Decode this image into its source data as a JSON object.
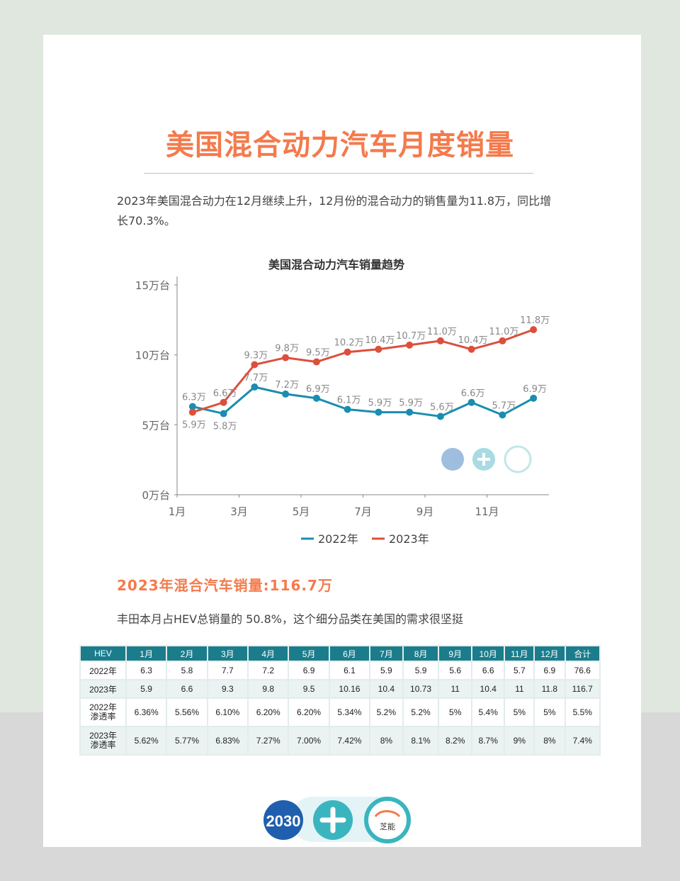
{
  "title": "美国混合动力汽车月度销量",
  "intro": "2023年美国混合动力在12月继续上升，12月份的混合动力的销售量为11.8万，同比增长70.3%。",
  "chart_data": {
    "type": "line",
    "title": "美国混合动力汽车销量趋势",
    "categories": [
      "1月",
      "2月",
      "3月",
      "4月",
      "5月",
      "6月",
      "7月",
      "8月",
      "9月",
      "10月",
      "11月",
      "12月"
    ],
    "x_tick_labels": [
      "1月",
      "3月",
      "5月",
      "7月",
      "9月",
      "11月"
    ],
    "y_tick_labels": [
      "0万台",
      "5万台",
      "10万台",
      "15万台"
    ],
    "ylim": [
      0,
      15
    ],
    "grid": false,
    "legend": "bottom",
    "series": [
      {
        "name": "2022年",
        "color": "#1a8db0",
        "values": [
          6.3,
          5.8,
          7.7,
          7.2,
          6.9,
          6.1,
          5.9,
          5.9,
          5.6,
          6.6,
          5.7,
          6.9
        ],
        "labels": [
          "6.3万",
          "5.8万",
          "7.7万",
          "7.2万",
          "6.9万",
          "6.1万",
          "5.9万",
          "5.9万",
          "5.6万",
          "6.6万",
          "5.7万",
          "6.9万"
        ]
      },
      {
        "name": "2023年",
        "color": "#dc4f3c",
        "values": [
          5.9,
          6.6,
          9.3,
          9.8,
          9.5,
          10.2,
          10.4,
          10.7,
          11.0,
          10.4,
          11.0,
          11.8
        ],
        "labels": [
          "5.9万",
          "6.6万",
          "9.3万",
          "9.8万",
          "9.5万",
          "10.2万",
          "10.4万",
          "10.7万",
          "11.0万",
          "10.4万",
          "11.0万",
          "11.8万"
        ]
      }
    ]
  },
  "subtitle": "2023年混合汽车销量:116.7万",
  "note": "丰田本月占HEV总销量的 50.8%，这个细分品类在美国的需求很坚挺",
  "table": {
    "headers": [
      "HEV",
      "1月",
      "2月",
      "3月",
      "4月",
      "5月",
      "6月",
      "7月",
      "8月",
      "9月",
      "10月",
      "11月",
      "12月",
      "合计"
    ],
    "rows": [
      [
        "2022年",
        "6.3",
        "5.8",
        "7.7",
        "7.2",
        "6.9",
        "6.1",
        "5.9",
        "5.9",
        "5.6",
        "6.6",
        "5.7",
        "6.9",
        "76.6"
      ],
      [
        "2023年",
        "5.9",
        "6.6",
        "9.3",
        "9.8",
        "9.5",
        "10.16",
        "10.4",
        "10.73",
        "11",
        "10.4",
        "11",
        "11.8",
        "116.7"
      ],
      [
        "2022年\n渗透率",
        "6.36%",
        "5.56%",
        "6.10%",
        "6.20%",
        "6.20%",
        "5.34%",
        "5.2%",
        "5.2%",
        "5%",
        "5.4%",
        "5%",
        "5%",
        "5.5%"
      ],
      [
        "2023年\n渗透率",
        "5.62%",
        "5.77%",
        "6.83%",
        "7.27%",
        "7.00%",
        "7.42%",
        "8%",
        "8.1%",
        "8.2%",
        "8.7%",
        "9%",
        "8%",
        "7.4%"
      ]
    ]
  },
  "logo": {
    "badge": "2030",
    "brand": "芝能"
  }
}
